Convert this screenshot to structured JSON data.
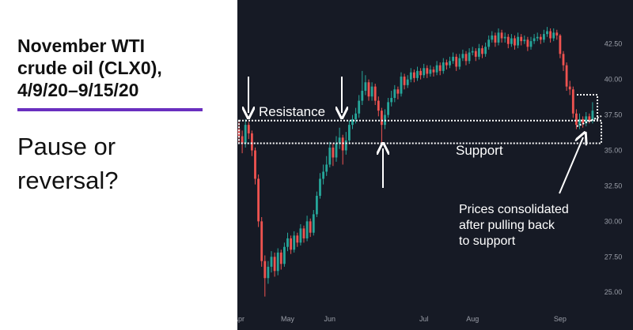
{
  "header": {
    "title": [
      "November WTI",
      "crude oil (CLX0),",
      "4/9/20–9/15/20"
    ],
    "subtitle": [
      "Pause or",
      "reversal?"
    ]
  },
  "chart_data": {
    "type": "candlestick",
    "up_color": "#26a69a",
    "down_color": "#ef5350",
    "categories": [
      "Apr",
      null,
      null,
      null,
      null,
      null,
      null,
      null,
      null,
      null,
      null,
      null,
      null,
      null,
      null,
      "May",
      null,
      null,
      null,
      null,
      null,
      null,
      null,
      null,
      null,
      null,
      null,
      null,
      "Jun",
      null,
      null,
      null,
      null,
      null,
      null,
      null,
      null,
      null,
      null,
      null,
      null,
      null,
      null,
      null,
      null,
      null,
      null,
      null,
      null,
      null,
      null,
      null,
      null,
      null,
      null,
      null,
      null,
      "Jul",
      null,
      null,
      null,
      null,
      null,
      null,
      null,
      null,
      null,
      null,
      null,
      null,
      null,
      null,
      "Aug",
      null,
      null,
      null,
      null,
      null,
      null,
      null,
      null,
      null,
      null,
      null,
      null,
      null,
      null,
      null,
      null,
      null,
      null,
      null,
      null,
      null,
      null,
      null,
      null,
      null,
      null,
      "Sep",
      null,
      null,
      null,
      null,
      null,
      null,
      null,
      null,
      null,
      null
    ],
    "open": [
      36.5,
      36.0,
      35.5,
      36.8,
      36.2,
      35.0,
      33.0,
      30.0,
      27.2,
      26.0,
      26.8,
      27.5,
      26.5,
      27.8,
      27.0,
      28.2,
      28.8,
      28.0,
      29.0,
      28.5,
      29.5,
      28.8,
      30.0,
      29.2,
      30.5,
      31.8,
      33.0,
      33.5,
      34.0,
      35.2,
      34.5,
      35.5,
      35.9,
      35.0,
      35.7,
      36.8,
      37.2,
      37.6,
      38.5,
      39.2,
      39.8,
      38.8,
      39.5,
      38.5,
      37.8,
      36.8,
      37.5,
      38.4,
      38.7,
      39.3,
      39.0,
      40.2,
      39.6,
      40.0,
      40.5,
      40.1,
      40.6,
      40.3,
      40.8,
      40.4,
      40.7,
      40.5,
      41.0,
      40.6,
      41.2,
      41.0,
      41.3,
      41.6,
      40.9,
      41.5,
      41.8,
      41.3,
      41.9,
      42.0,
      41.6,
      42.2,
      41.8,
      42.3,
      42.8,
      43.1,
      42.6,
      43.3,
      42.9,
      43.0,
      42.5,
      42.9,
      42.4,
      43.0,
      42.7,
      42.8,
      42.3,
      42.7,
      42.9,
      43.0,
      42.8,
      43.2,
      43.4,
      42.9,
      43.3,
      43.1,
      41.8,
      41.0,
      39.5,
      39.3,
      37.6,
      36.8,
      37.2,
      36.9,
      37.4,
      37.1
    ],
    "high": [
      37.0,
      36.4,
      37.2,
      37.0,
      36.4,
      35.2,
      33.3,
      30.3,
      27.6,
      27.2,
      27.9,
      27.8,
      28.1,
      28.0,
      28.5,
      29.2,
      29.0,
      29.3,
      29.2,
      29.8,
      29.7,
      30.4,
      30.2,
      30.8,
      32.1,
      33.4,
      34.0,
      34.6,
      35.6,
      35.5,
      36.0,
      36.6,
      36.1,
      36.3,
      37.1,
      37.5,
      38.0,
      38.9,
      40.6,
      40.3,
      40.0,
      39.8,
      39.7,
      38.8,
      38.0,
      37.9,
      38.7,
      39.2,
      39.6,
      39.5,
      40.5,
      40.4,
      40.3,
      40.8,
      40.7,
      40.9,
      40.8,
      41.1,
      41.0,
      41.0,
      40.9,
      41.3,
      41.2,
      41.5,
      41.4,
      41.6,
      41.9,
      41.8,
      41.8,
      42.1,
      42.0,
      42.2,
      42.3,
      42.2,
      42.5,
      42.4,
      42.6,
      43.1,
      43.4,
      43.3,
      43.6,
      43.5,
      43.3,
      43.2,
      43.2,
      43.1,
      43.3,
      43.2,
      43.1,
      43.0,
      43.0,
      43.2,
      43.3,
      43.2,
      43.5,
      43.7,
      43.6,
      43.6,
      43.5,
      43.2,
      42.0,
      41.2,
      39.9,
      39.5,
      37.9,
      37.6,
      37.4,
      37.7,
      37.6,
      38.4
    ],
    "low": [
      35.5,
      34.8,
      35.2,
      35.8,
      34.6,
      32.6,
      29.6,
      26.8,
      24.7,
      25.6,
      26.4,
      26.1,
      26.2,
      26.6,
      26.8,
      27.9,
      27.7,
      27.8,
      28.2,
      28.3,
      28.5,
      28.6,
      28.9,
      29.0,
      30.3,
      31.6,
      32.6,
      33.2,
      33.8,
      33.9,
      34.2,
      35.1,
      34.0,
      34.7,
      35.5,
      36.5,
      36.9,
      37.3,
      38.2,
      38.9,
      38.5,
      38.5,
      38.2,
      37.4,
      35.5,
      36.5,
      37.3,
      38.1,
      38.4,
      38.6,
      38.8,
      39.3,
      39.4,
      39.8,
      39.8,
      39.9,
      40.0,
      40.1,
      40.1,
      40.2,
      40.2,
      40.3,
      40.3,
      40.4,
      40.7,
      40.8,
      41.1,
      40.6,
      40.7,
      41.3,
      41.0,
      41.1,
      41.7,
      41.3,
      41.4,
      41.5,
      41.6,
      42.1,
      42.6,
      42.3,
      42.4,
      42.6,
      42.6,
      42.2,
      42.3,
      42.1,
      42.2,
      42.4,
      42.5,
      42.0,
      42.1,
      42.5,
      42.7,
      42.5,
      42.6,
      43.0,
      42.6,
      42.7,
      42.8,
      41.5,
      40.6,
      39.2,
      38.9,
      37.3,
      36.5,
      36.5,
      36.6,
      36.7,
      36.9,
      36.9
    ],
    "close": [
      36.0,
      35.5,
      36.8,
      36.2,
      35.0,
      33.0,
      30.0,
      27.2,
      26.0,
      26.8,
      27.5,
      26.5,
      27.8,
      27.0,
      28.2,
      28.8,
      28.0,
      29.0,
      28.5,
      29.5,
      28.8,
      30.0,
      29.2,
      30.5,
      31.8,
      33.0,
      33.5,
      34.0,
      35.2,
      34.5,
      35.5,
      35.9,
      35.0,
      35.7,
      36.8,
      37.2,
      37.6,
      38.5,
      39.2,
      39.8,
      38.8,
      39.5,
      38.5,
      37.8,
      36.8,
      37.5,
      38.4,
      38.7,
      39.3,
      39.0,
      40.2,
      39.6,
      40.0,
      40.5,
      40.1,
      40.6,
      40.3,
      40.8,
      40.4,
      40.7,
      40.5,
      41.0,
      40.6,
      41.2,
      41.0,
      41.3,
      41.6,
      40.9,
      41.5,
      41.8,
      41.3,
      41.9,
      42.0,
      41.6,
      42.2,
      41.8,
      42.3,
      42.8,
      43.1,
      42.6,
      43.3,
      42.9,
      43.0,
      42.5,
      42.9,
      42.4,
      43.0,
      42.7,
      42.8,
      42.3,
      42.7,
      42.9,
      43.0,
      42.8,
      43.2,
      43.4,
      42.9,
      43.3,
      43.1,
      41.8,
      41.0,
      39.5,
      39.3,
      37.6,
      36.8,
      37.2,
      36.9,
      37.4,
      37.1,
      37.8
    ],
    "ylim": [
      23.9,
      45.6
    ],
    "yticks": [
      {
        "value": 25,
        "label": "25.00"
      },
      {
        "value": 27.5,
        "label": "27.50"
      },
      {
        "value": 30,
        "label": "30.00"
      },
      {
        "value": 32.5,
        "label": "32.50"
      },
      {
        "value": 35,
        "label": "35.00"
      },
      {
        "value": 37.5,
        "label": "37.50"
      },
      {
        "value": 40,
        "label": "40.00"
      },
      {
        "value": 42.5,
        "label": "42.50"
      }
    ],
    "zone": [
      35.5,
      37.1
    ],
    "annotations": {
      "resistance": "Resistance",
      "support": "Support",
      "note": [
        "Prices consolidated",
        "after pulling back",
        "to support"
      ]
    }
  }
}
